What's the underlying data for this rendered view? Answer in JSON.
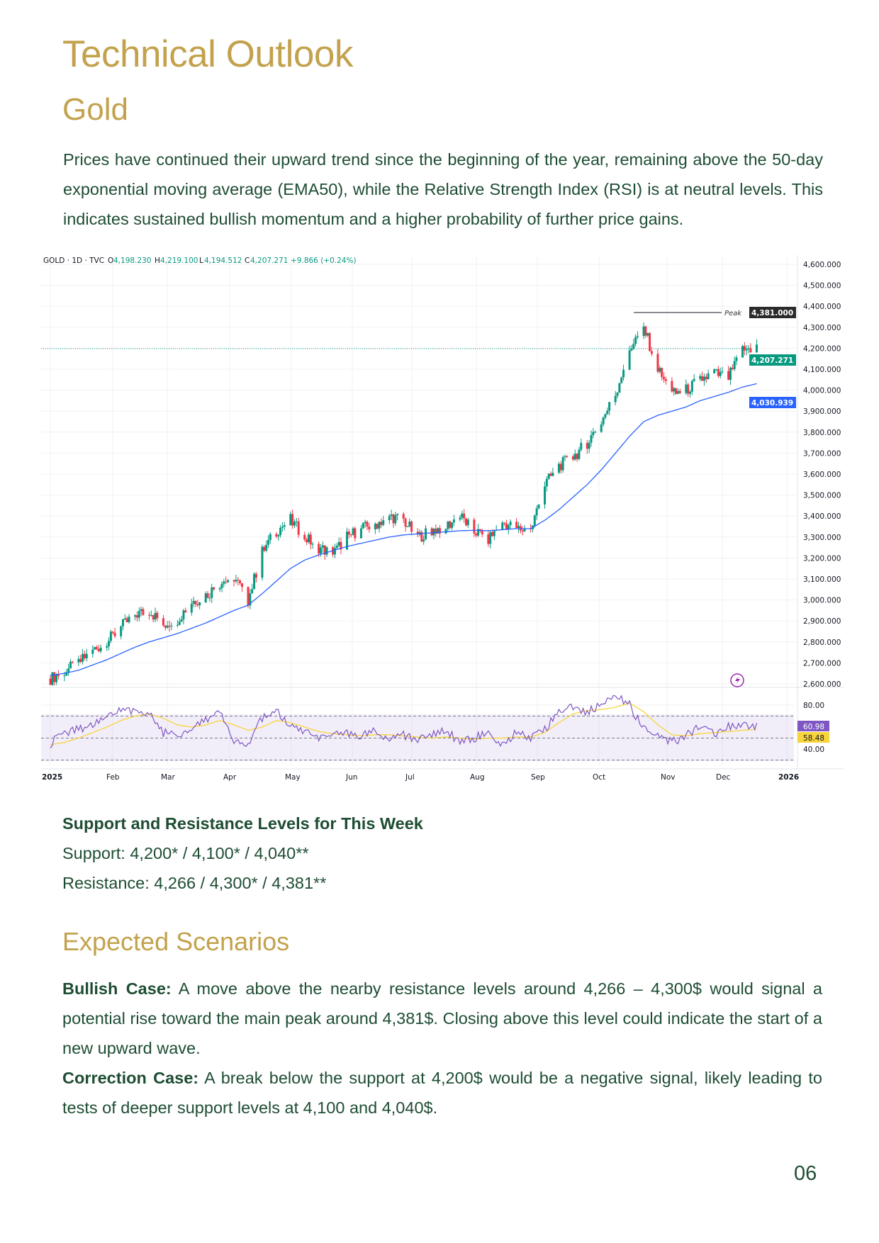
{
  "title": "Technical Outlook",
  "subtitle": "Gold",
  "intro": "Prices have continued their upward trend since the beginning of the year, remaining above the 50-day exponential moving average (EMA50), while the Relative Strength Index (RSI) is at neutral levels. This indicates sustained bullish momentum and a higher probability of further price gains.",
  "chart_data": {
    "type": "candlestick",
    "header": {
      "symbol": "GOLD · 1D · TVC",
      "open_label": "O",
      "open": "4,198.230",
      "high_label": "H",
      "high": "4,219.100",
      "low_label": "L",
      "low": "4,194.512",
      "close_label": "C",
      "close": "4,207.271",
      "change": "+9.866 (+0.24%)"
    },
    "y_ticks": [
      "4,600.000",
      "4,500.000",
      "4,400.000",
      "4,300.000",
      "4,200.000",
      "4,100.000",
      "4,000.000",
      "3,900.000",
      "3,800.000",
      "3,700.000",
      "3,600.000",
      "3,500.000",
      "3,400.000",
      "3,300.000",
      "3,200.000",
      "3,100.000",
      "3,000.000",
      "2,900.000",
      "2,800.000",
      "2,700.000",
      "2,600.000"
    ],
    "ylim": [
      2600,
      4600
    ],
    "x_ticks": [
      "2025",
      "Feb",
      "Mar",
      "Apr",
      "May",
      "Jun",
      "Jul",
      "Aug",
      "Sep",
      "Oct",
      "Nov",
      "Dec",
      "2026"
    ],
    "weekly_close": [
      2625,
      2660,
      2700,
      2760,
      2800,
      2870,
      2930,
      2950,
      2880,
      2910,
      2990,
      3020,
      3080,
      3110,
      3000,
      3230,
      3330,
      3380,
      3300,
      3250,
      3220,
      3300,
      3340,
      3360,
      3400,
      3380,
      3300,
      3330,
      3350,
      3400,
      3330,
      3290,
      3370,
      3340,
      3330,
      3550,
      3640,
      3680,
      3750,
      3850,
      3980,
      4200,
      4300,
      4100,
      3980,
      4000,
      4050,
      4080,
      4060,
      4190,
      4207
    ],
    "ema50_weekly": [
      2640,
      2650,
      2665,
      2690,
      2715,
      2745,
      2775,
      2800,
      2820,
      2840,
      2865,
      2890,
      2920,
      2950,
      2975,
      3030,
      3090,
      3150,
      3190,
      3215,
      3235,
      3255,
      3270,
      3285,
      3300,
      3310,
      3315,
      3320,
      3325,
      3330,
      3332,
      3330,
      3335,
      3340,
      3340,
      3380,
      3430,
      3490,
      3550,
      3620,
      3700,
      3780,
      3850,
      3880,
      3900,
      3920,
      3950,
      3970,
      3990,
      4015,
      4031
    ],
    "rsi_weekly": [
      45,
      55,
      58,
      62,
      70,
      75,
      76,
      72,
      55,
      52,
      60,
      68,
      72,
      48,
      45,
      68,
      74,
      60,
      56,
      48,
      52,
      55,
      52,
      56,
      50,
      53,
      48,
      52,
      57,
      46,
      50,
      55,
      44,
      55,
      50,
      58,
      76,
      78,
      74,
      80,
      88,
      80,
      58,
      52,
      46,
      52,
      60,
      54,
      60,
      63,
      61
    ],
    "rsi_ma_weekly": [
      44,
      46,
      50,
      55,
      60,
      66,
      70,
      72,
      68,
      62,
      60,
      62,
      66,
      62,
      57,
      60,
      66,
      64,
      60,
      56,
      54,
      53,
      52,
      53,
      53,
      52,
      51,
      50,
      51,
      50,
      49,
      50,
      50,
      51,
      51,
      55,
      64,
      72,
      75,
      76,
      78,
      82,
      74,
      62,
      53,
      52,
      54,
      55,
      56,
      57,
      58
    ],
    "rsi_ticks": [
      "80.00",
      "40.00"
    ],
    "peak": {
      "label": "Peak",
      "value": "4,381.000"
    },
    "last_price": "4,207.271",
    "ema_value": "4,030.939",
    "rsi_value": "60.98",
    "rsi_ma_value": "58.48",
    "colors": {
      "up": "#089981",
      "down": "#F23645",
      "ema": "#2962FF",
      "rsi": "#7E57C2",
      "rsi_ma": "#F7D43B"
    }
  },
  "levels": {
    "title": "Support and Resistance Levels for This Week",
    "support": "Support: 4,200* / 4,100* / 4,040**",
    "resistance": "Resistance: 4,266 / 4,300* / 4,381**"
  },
  "scenarios": {
    "title": "Expected Scenarios",
    "bull_label": "Bullish Case:",
    "bull_text": " A move above the nearby resistance levels around 4,266 – 4,300$ would signal a potential rise toward the main peak around 4,381$. Closing above this level could indicate the start of a new upward wave.",
    "corr_label": "Correction Case:",
    "corr_text": " A break below the support at 4,200$ would be a negative signal, likely leading to tests of deeper support levels at 4,100 and 4,040$."
  },
  "page_number": "06"
}
